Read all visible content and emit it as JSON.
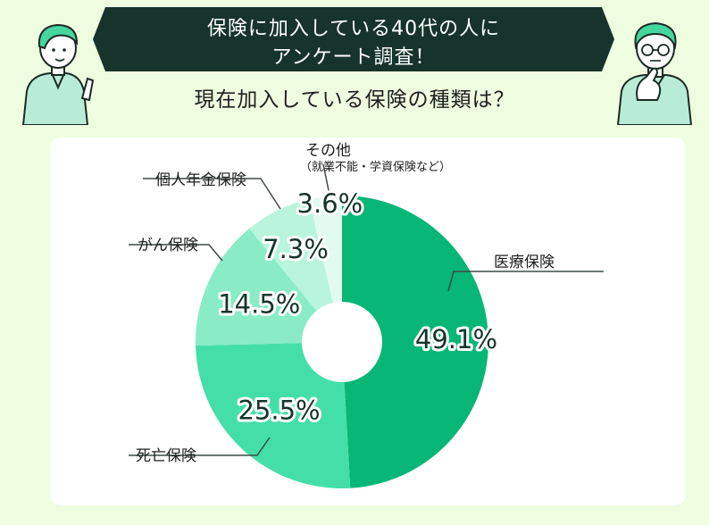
{
  "header": {
    "title_line1": "保険に加入している40代の人に",
    "title_line2": "アンケート調査！",
    "subtitle": "現在加入している保険の種類は？"
  },
  "chart_data": {
    "type": "pie",
    "donut": true,
    "slices": [
      {
        "label": "医療保険",
        "value": 49.1,
        "display": "49.1%",
        "color": "#08b676"
      },
      {
        "label": "死亡保険",
        "value": 25.5,
        "display": "25.5%",
        "color": "#44dfa9"
      },
      {
        "label": "がん保険",
        "value": 14.5,
        "display": "14.5%",
        "color": "#89ecc6"
      },
      {
        "label": "個人年金保険",
        "value": 7.3,
        "display": "7.3%",
        "color": "#b9f4dd"
      },
      {
        "label": "その他",
        "sublabel": "（就業不能・学資保険など）",
        "value": 3.6,
        "display": "3.6%",
        "color": "#e3faf0"
      }
    ]
  },
  "colors": {
    "background": "#eefde0",
    "banner": "#16342b",
    "card": "#ffffff",
    "leader_line": "#3f4a45"
  }
}
